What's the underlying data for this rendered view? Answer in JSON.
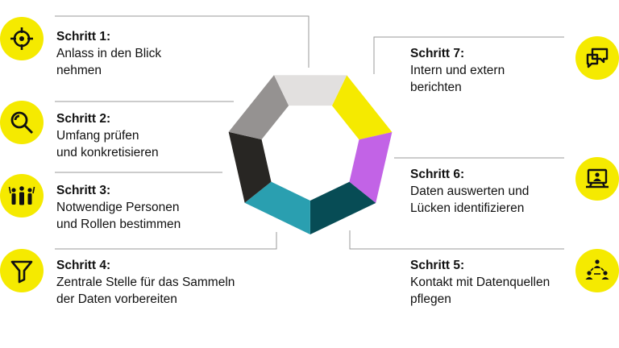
{
  "colors": {
    "accent": "#f5ea00",
    "line": "#999999",
    "segments": [
      "#f5ea00",
      "#c263e6",
      "#074c55",
      "#2a9fb0",
      "#282623",
      "#959291",
      "#e2e0df"
    ]
  },
  "steps": [
    {
      "title": "Schritt 1:",
      "desc": "Anlass in den Blick\nnehmen",
      "icon": "crosshair-icon"
    },
    {
      "title": "Schritt 2:",
      "desc": "Umfang prüfen\nund konkretisieren",
      "icon": "magnifier-icon"
    },
    {
      "title": "Schritt 3:",
      "desc": "Notwendige Personen\nund Rollen bestimmen",
      "icon": "people-group-icon"
    },
    {
      "title": "Schritt 4:",
      "desc": "Zentrale Stelle für das Sammeln\nder Daten vorbereiten",
      "icon": "funnel-icon"
    },
    {
      "title": "Schritt 5:",
      "desc": "Kontakt mit Datenquellen\npflegen",
      "icon": "network-people-icon"
    },
    {
      "title": "Schritt 6:",
      "desc": "Daten auswerten und\nLücken identifizieren",
      "icon": "monitor-icon"
    },
    {
      "title": "Schritt 7:",
      "desc": "Intern und extern\nberichten",
      "icon": "chat-bubbles-icon"
    }
  ]
}
